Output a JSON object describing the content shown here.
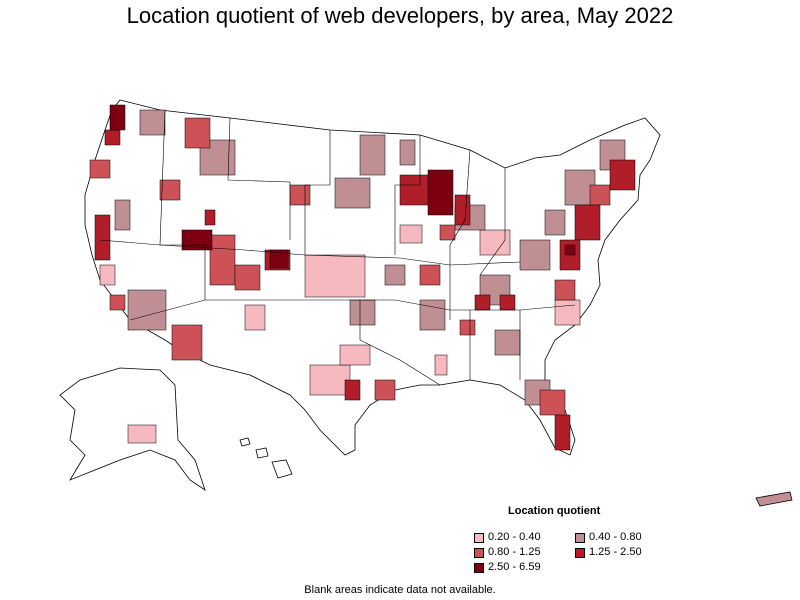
{
  "title": "Location quotient of web developers, by area, May 2022",
  "legend": {
    "title": "Location quotient",
    "items": [
      {
        "label": "0.20 - 0.40",
        "color": "#f7b9c0"
      },
      {
        "label": "0.40 - 0.80",
        "color": "#c08f94"
      },
      {
        "label": "0.80 - 1.25",
        "color": "#cc5258"
      },
      {
        "label": "1.25 - 2.50",
        "color": "#b01e2a"
      },
      {
        "label": "2.50 - 6.59",
        "color": "#7d0012"
      }
    ]
  },
  "note": "Blank areas indicate data not available.",
  "colors": {
    "outline": "#000000",
    "land_blank": "#ffffff"
  }
}
